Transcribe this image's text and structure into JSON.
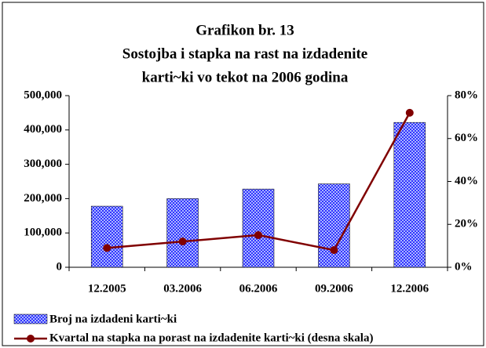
{
  "chart_data": {
    "type": "bar-line",
    "title": [
      "Grafikon br. 13",
      "Sostojba i stapka na rast na izdadenite",
      "karti~ki vo tekot na 2006 godina"
    ],
    "categories": [
      "12.2005",
      "03.2006",
      "06.2006",
      "09.2006",
      "12.2006"
    ],
    "series": [
      {
        "name": "Broj na izdadeni karti~ki",
        "color": "#3333ff",
        "type": "bar",
        "values": [
          178000,
          200000,
          228000,
          243000,
          422000
        ]
      },
      {
        "name": "Kvartal na stapka na porast na izdadenite karti~ki (desna skala)",
        "color": "#800000",
        "type": "line",
        "axis": "y2",
        "values": [
          9,
          12,
          15,
          8,
          72
        ]
      }
    ],
    "ylim": [
      0,
      500000
    ],
    "yticks": [
      0,
      {
        "value": 100000,
        "label": "100,000"
      },
      {
        "value": 200000,
        "label": "200,000"
      },
      {
        "value": 300000,
        "label": "300,000"
      },
      {
        "value": 400000,
        "label": "400,000"
      },
      {
        "value": 500000,
        "label": "500,000"
      }
    ],
    "y2lim": [
      0,
      80
    ],
    "y2ticks": [
      {
        "value": 0,
        "label": "0%"
      },
      {
        "value": 20,
        "label": "20%"
      },
      {
        "value": 40,
        "label": "40%"
      },
      {
        "value": 60,
        "label": "60%"
      },
      {
        "value": 80,
        "label": "80%"
      }
    ],
    "grid": false
  }
}
